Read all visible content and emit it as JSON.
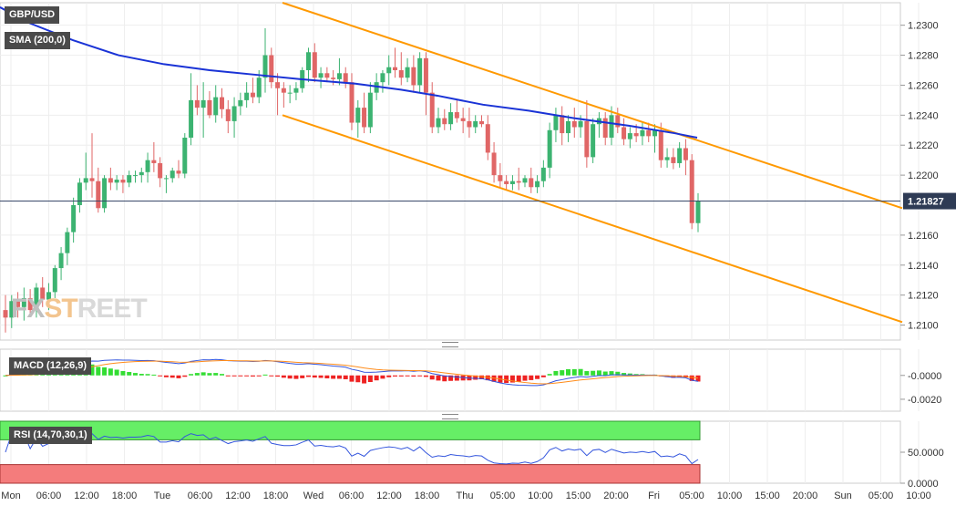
{
  "symbol_label": "GBP/USD",
  "indicators": {
    "sma": "SMA (200,0)",
    "macd": "MACD (12,26,9)",
    "rsi": "RSI (14,70,30,1)"
  },
  "watermark": {
    "part1": "FX",
    "part2": "ST",
    "part3": "REET"
  },
  "current_price": "1.21827",
  "colors": {
    "up": "#3cb371",
    "down": "#e06666",
    "sma": "#1a33d6",
    "channel": "#ff9900",
    "macd_line": "#3355dd",
    "signal_line": "#ff8c1a",
    "hist_up": "#33dd33",
    "hist_down": "#ee2222",
    "rsi_over": "#66ee66",
    "rsi_under": "#f47c7c"
  },
  "chart_data": [
    {
      "type": "candlestick",
      "title": "GBP/USD",
      "ylim": [
        1.209,
        1.2315
      ],
      "y_ticks": [
        "1.2300",
        "1.2280",
        "1.2260",
        "1.2240",
        "1.2220",
        "1.2200",
        "1.2160",
        "1.2140",
        "1.2120",
        "1.2100"
      ],
      "x_ticks": [
        "Mon",
        "06:00",
        "12:00",
        "18:00",
        "Tue",
        "06:00",
        "12:00",
        "18:00",
        "Wed",
        "06:00",
        "12:00",
        "18:00",
        "Thu",
        "05:00",
        "10:00",
        "15:00",
        "20:00",
        "Fri",
        "05:00",
        "10:00",
        "15:00",
        "20:00",
        "Sun",
        "05:00",
        "10:00"
      ],
      "candles": [
        [
          1.211,
          1.212,
          1.2095,
          1.2105
        ],
        [
          1.2105,
          1.212,
          1.2098,
          1.2116
        ],
        [
          1.2116,
          1.2122,
          1.2105,
          1.2112
        ],
        [
          1.2112,
          1.2125,
          1.2103,
          1.2118
        ],
        [
          1.2118,
          1.2124,
          1.2108,
          1.211
        ],
        [
          1.211,
          1.2128,
          1.2105,
          1.2125
        ],
        [
          1.2125,
          1.2132,
          1.2112,
          1.2117
        ],
        [
          1.2117,
          1.2128,
          1.211,
          1.2122
        ],
        [
          1.2122,
          1.214,
          1.2118,
          1.2138
        ],
        [
          1.2138,
          1.2152,
          1.213,
          1.2148
        ],
        [
          1.2148,
          1.2165,
          1.214,
          1.2162
        ],
        [
          1.2162,
          1.2185,
          1.2155,
          1.218
        ],
        [
          1.218,
          1.2198,
          1.2175,
          1.2195
        ],
        [
          1.2195,
          1.2215,
          1.219,
          1.2198
        ],
        [
          1.2198,
          1.2228,
          1.2185,
          1.2196
        ],
        [
          1.2196,
          1.2205,
          1.2175,
          1.2178
        ],
        [
          1.2178,
          1.22,
          1.2175,
          1.2198
        ],
        [
          1.2198,
          1.2205,
          1.219,
          1.2195
        ],
        [
          1.2195,
          1.22,
          1.219,
          1.2197
        ],
        [
          1.2197,
          1.22,
          1.2188,
          1.2195
        ],
        [
          1.2195,
          1.2203,
          1.2192,
          1.22
        ],
        [
          1.22,
          1.2203,
          1.2195,
          1.22
        ],
        [
          1.22,
          1.2205,
          1.2195,
          1.2202
        ],
        [
          1.2202,
          1.2215,
          1.2195,
          1.221
        ],
        [
          1.221,
          1.2222,
          1.2202,
          1.2208
        ],
        [
          1.2208,
          1.2212,
          1.2192,
          1.2198
        ],
        [
          1.2198,
          1.22,
          1.2188,
          1.2198
        ],
        [
          1.2198,
          1.2205,
          1.2195,
          1.2203
        ],
        [
          1.2203,
          1.221,
          1.2198,
          1.2201
        ],
        [
          1.2201,
          1.2228,
          1.2198,
          1.2225
        ],
        [
          1.2225,
          1.2268,
          1.222,
          1.225
        ],
        [
          1.225,
          1.226,
          1.224,
          1.2245
        ],
        [
          1.2245,
          1.2262,
          1.2225,
          1.225
        ],
        [
          1.225,
          1.2256,
          1.2238,
          1.224
        ],
        [
          1.224,
          1.226,
          1.2235,
          1.2252
        ],
        [
          1.2252,
          1.2258,
          1.2238,
          1.2244
        ],
        [
          1.2244,
          1.225,
          1.2228,
          1.2236
        ],
        [
          1.2236,
          1.2252,
          1.2225,
          1.2246
        ],
        [
          1.2246,
          1.2255,
          1.224,
          1.225
        ],
        [
          1.225,
          1.2262,
          1.2245,
          1.2255
        ],
        [
          1.2255,
          1.2265,
          1.2248,
          1.2252
        ],
        [
          1.2252,
          1.227,
          1.2248,
          1.2265
        ],
        [
          1.2265,
          1.2298,
          1.2255,
          1.228
        ],
        [
          1.228,
          1.2285,
          1.2258,
          1.2262
        ],
        [
          1.2262,
          1.2268,
          1.224,
          1.2258
        ],
        [
          1.2258,
          1.2262,
          1.2245,
          1.2255
        ],
        [
          1.2255,
          1.226,
          1.2248,
          1.2255
        ],
        [
          1.2255,
          1.2262,
          1.225,
          1.2258
        ],
        [
          1.2258,
          1.2272,
          1.2255,
          1.227
        ],
        [
          1.227,
          1.2285,
          1.2262,
          1.2282
        ],
        [
          1.2282,
          1.2288,
          1.2262,
          1.2265
        ],
        [
          1.2265,
          1.2272,
          1.2258,
          1.2268
        ],
        [
          1.2268,
          1.2272,
          1.2262,
          1.2265
        ],
        [
          1.2265,
          1.227,
          1.226,
          1.2264
        ],
        [
          1.2264,
          1.2278,
          1.226,
          1.2268
        ],
        [
          1.2268,
          1.2272,
          1.2258,
          1.2262
        ],
        [
          1.2262,
          1.2268,
          1.223,
          1.2235
        ],
        [
          1.2235,
          1.225,
          1.2225,
          1.2245
        ],
        [
          1.2245,
          1.2255,
          1.2228,
          1.2232
        ],
        [
          1.2232,
          1.2262,
          1.2228,
          1.2255
        ],
        [
          1.2255,
          1.2268,
          1.225,
          1.2262
        ],
        [
          1.2262,
          1.227,
          1.2255,
          1.2268
        ],
        [
          1.2268,
          1.228,
          1.226,
          1.2272
        ],
        [
          1.2272,
          1.2285,
          1.2265,
          1.227
        ],
        [
          1.227,
          1.2282,
          1.226,
          1.2265
        ],
        [
          1.2265,
          1.2278,
          1.2262,
          1.2272
        ],
        [
          1.2272,
          1.228,
          1.2255,
          1.226
        ],
        [
          1.226,
          1.2282,
          1.2255,
          1.2278
        ],
        [
          1.2278,
          1.2282,
          1.224,
          1.2255
        ],
        [
          1.2255,
          1.2262,
          1.2228,
          1.2232
        ],
        [
          1.2232,
          1.2245,
          1.2228,
          1.2238
        ],
        [
          1.2238,
          1.2244,
          1.223,
          1.2234
        ],
        [
          1.2234,
          1.2248,
          1.223,
          1.2242
        ],
        [
          1.2242,
          1.225,
          1.2235,
          1.2238
        ],
        [
          1.2238,
          1.2245,
          1.2228,
          1.2236
        ],
        [
          1.2236,
          1.2245,
          1.2225,
          1.2232
        ],
        [
          1.2232,
          1.224,
          1.2228,
          1.2236
        ],
        [
          1.2236,
          1.224,
          1.2232,
          1.2234
        ],
        [
          1.2234,
          1.224,
          1.221,
          1.2215
        ],
        [
          1.2215,
          1.2222,
          1.2195,
          1.22
        ],
        [
          1.22,
          1.2208,
          1.2192,
          1.2196
        ],
        [
          1.2196,
          1.22,
          1.219,
          1.2194
        ],
        [
          1.2194,
          1.22,
          1.219,
          1.2196
        ],
        [
          1.2196,
          1.2205,
          1.219,
          1.2195
        ],
        [
          1.2195,
          1.22,
          1.2192,
          1.2198
        ],
        [
          1.2198,
          1.2205,
          1.2188,
          1.2192
        ],
        [
          1.2192,
          1.22,
          1.2188,
          1.2196
        ],
        [
          1.2196,
          1.221,
          1.2192,
          1.2205
        ],
        [
          1.2205,
          1.2235,
          1.2198,
          1.223
        ],
        [
          1.223,
          1.2245,
          1.2222,
          1.224
        ],
        [
          1.224,
          1.2246,
          1.222,
          1.2228
        ],
        [
          1.2228,
          1.224,
          1.2222,
          1.2236
        ],
        [
          1.2236,
          1.2245,
          1.2225,
          1.2232
        ],
        [
          1.2232,
          1.224,
          1.2225,
          1.2236
        ],
        [
          1.2236,
          1.225,
          1.2205,
          1.2212
        ],
        [
          1.2212,
          1.2238,
          1.2208,
          1.2234
        ],
        [
          1.2234,
          1.2242,
          1.2225,
          1.2238
        ],
        [
          1.2238,
          1.2242,
          1.222,
          1.2225
        ],
        [
          1.2225,
          1.2246,
          1.222,
          1.224
        ],
        [
          1.224,
          1.2245,
          1.2228,
          1.2232
        ],
        [
          1.2232,
          1.2238,
          1.222,
          1.2224
        ],
        [
          1.2224,
          1.2232,
          1.2218,
          1.2228
        ],
        [
          1.2228,
          1.2234,
          1.2222,
          1.2226
        ],
        [
          1.2226,
          1.2235,
          1.222,
          1.223
        ],
        [
          1.223,
          1.2235,
          1.2222,
          1.2226
        ],
        [
          1.2226,
          1.2234,
          1.2215,
          1.223
        ],
        [
          1.223,
          1.2235,
          1.2205,
          1.221
        ],
        [
          1.221,
          1.2218,
          1.2205,
          1.2212
        ],
        [
          1.2212,
          1.2218,
          1.2204,
          1.2208
        ],
        [
          1.2208,
          1.2222,
          1.2205,
          1.2218
        ],
        [
          1.2218,
          1.2224,
          1.22,
          1.221
        ],
        [
          1.221,
          1.2214,
          1.2164,
          1.2168
        ],
        [
          1.2168,
          1.2188,
          1.2162,
          1.2183
        ]
      ],
      "sma": [
        [
          0,
          1.2312
        ],
        [
          30,
          1.2302
        ],
        [
          80,
          1.229
        ],
        [
          130,
          1.228
        ],
        [
          180,
          1.2274
        ],
        [
          230,
          1.227
        ],
        [
          280,
          1.2267
        ],
        [
          330,
          1.2264
        ],
        [
          390,
          1.2261
        ],
        [
          440,
          1.2257
        ],
        [
          480,
          1.2253
        ],
        [
          530,
          1.2247
        ],
        [
          580,
          1.2243
        ],
        [
          630,
          1.2238
        ],
        [
          690,
          1.2233
        ],
        [
          740,
          1.2228
        ],
        [
          765,
          1.2225
        ]
      ],
      "channel_upper": [
        [
          310,
          1.2315
        ],
        [
          990,
          1.2178
        ]
      ],
      "channel_lower": [
        [
          310,
          1.224
        ],
        [
          990,
          1.2102
        ]
      ]
    },
    {
      "type": "line",
      "title": "MACD (12,26,9)",
      "y_ticks": [
        "-0.0000",
        "-0.0020"
      ],
      "ylim": [
        -0.003,
        0.0022
      ]
    },
    {
      "type": "line",
      "title": "RSI (14,70,30,1)",
      "y_ticks": [
        "50.0000",
        "0.0000"
      ],
      "ylim": [
        0,
        100
      ]
    }
  ]
}
